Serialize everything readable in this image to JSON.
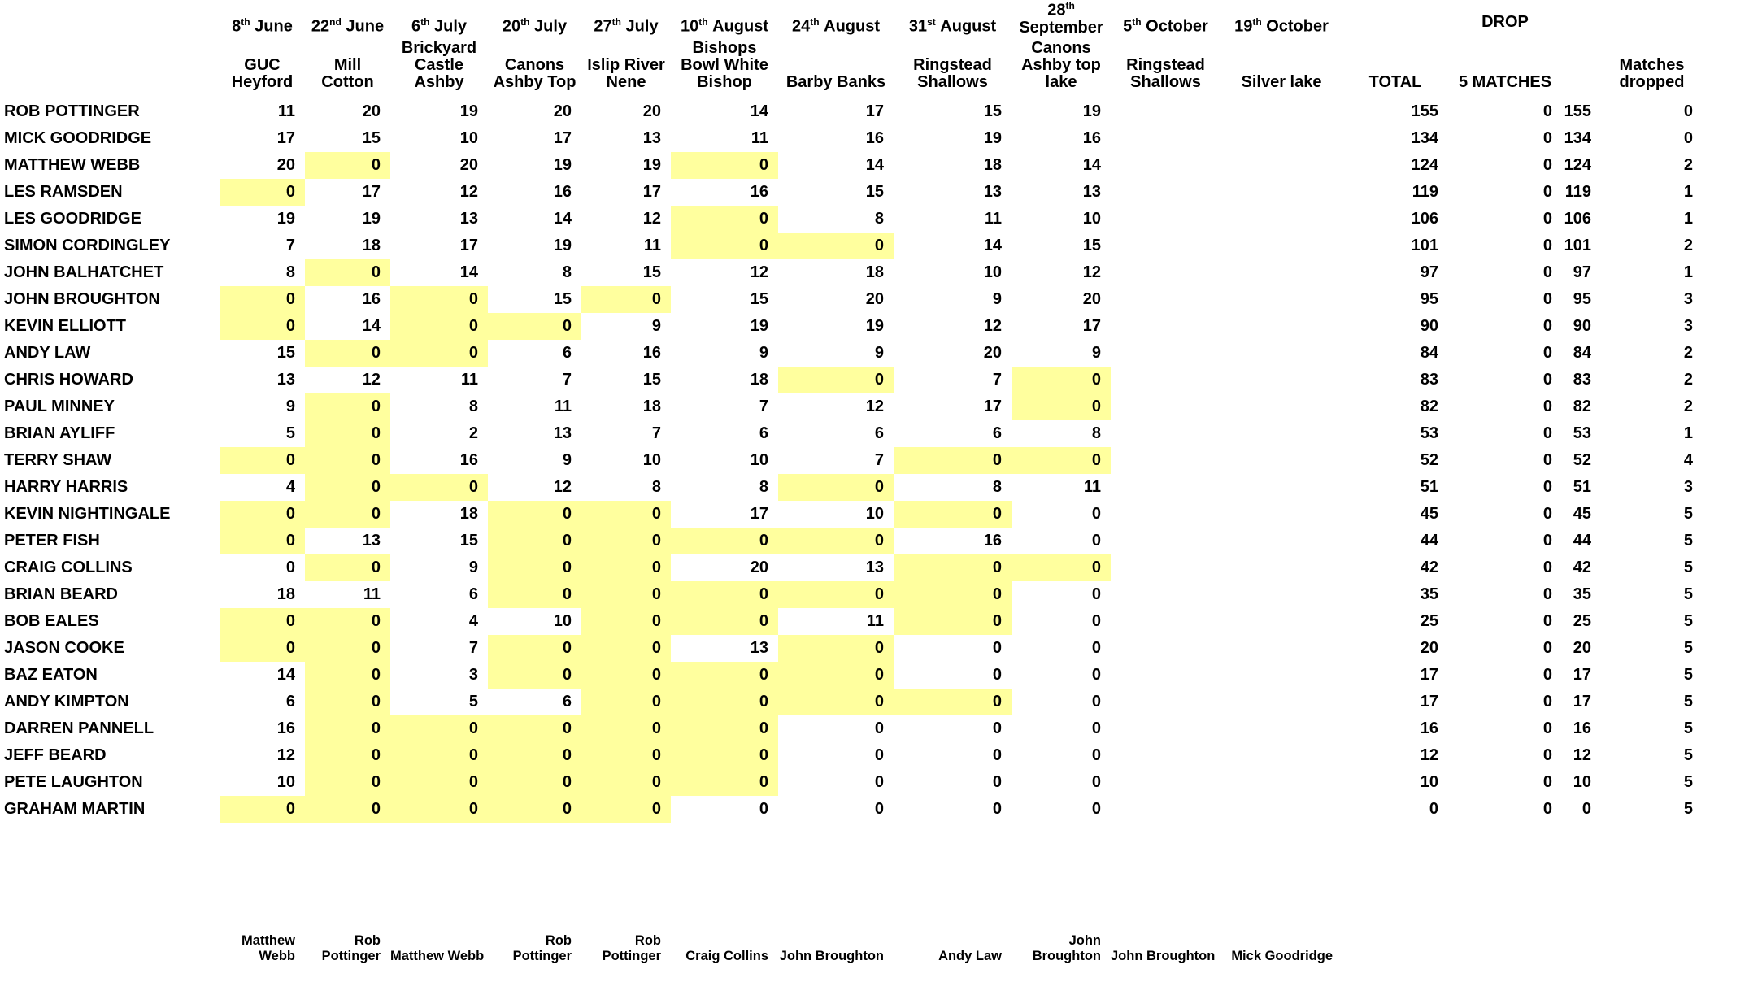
{
  "header": {
    "drop_label": "DROP",
    "total_label": "TOTAL",
    "five_matches_label": "5 MATCHES",
    "matches_dropped_lines": [
      "Matches",
      "dropped"
    ]
  },
  "highlight_color": "#ffff9e",
  "matches": [
    {
      "day": "8",
      "ord": "th",
      "month": "June",
      "month_newline": false,
      "venue_lines": [
        "GUC",
        "Heyford"
      ],
      "winner_lines": [
        "Matthew",
        "Webb"
      ]
    },
    {
      "day": "22",
      "ord": "nd",
      "month": "June",
      "month_newline": false,
      "venue_lines": [
        "Mill",
        "Cotton"
      ],
      "winner_lines": [
        "Rob",
        "Pottinger"
      ]
    },
    {
      "day": "6",
      "ord": "th",
      "month": "July",
      "month_newline": false,
      "venue_lines": [
        "Brickyard",
        "Castle",
        "Ashby"
      ],
      "winner_lines": [
        "Matthew Webb"
      ]
    },
    {
      "day": "20",
      "ord": "th",
      "month": "July",
      "month_newline": false,
      "venue_lines": [
        "Canons",
        "Ashby Top"
      ],
      "winner_lines": [
        "Rob",
        "Pottinger"
      ]
    },
    {
      "day": "27",
      "ord": "th",
      "month": "July",
      "month_newline": false,
      "venue_lines": [
        "Islip River",
        "Nene"
      ],
      "winner_lines": [
        "Rob",
        "Pottinger"
      ]
    },
    {
      "day": "10",
      "ord": "th",
      "month": "August",
      "month_newline": false,
      "venue_lines": [
        "Bishops",
        "Bowl White",
        "Bishop"
      ],
      "winner_lines": [
        "Craig Collins"
      ]
    },
    {
      "day": "24",
      "ord": "th",
      "month": "August",
      "month_newline": false,
      "venue_lines": [
        "Barby Banks"
      ],
      "winner_lines": [
        "John Broughton"
      ]
    },
    {
      "day": "31",
      "ord": "st",
      "month": "August",
      "month_newline": false,
      "venue_lines": [
        "Ringstead",
        "Shallows"
      ],
      "winner_lines": [
        "Andy Law"
      ]
    },
    {
      "day": "28",
      "ord": "th",
      "month": "September",
      "month_newline": true,
      "venue_lines": [
        "Canons",
        "Ashby top",
        "lake"
      ],
      "winner_lines": [
        "John",
        "Broughton"
      ]
    },
    {
      "day": "5",
      "ord": "th",
      "month": "October",
      "month_newline": false,
      "venue_lines": [
        "Ringstead",
        "Shallows"
      ],
      "winner_lines": [
        "John Broughton"
      ]
    },
    {
      "day": "19",
      "ord": "th",
      "month": "October",
      "month_newline": false,
      "venue_lines": [
        "Silver lake"
      ],
      "winner_lines": [
        "Mick Goodridge"
      ]
    }
  ],
  "anglers": [
    {
      "name": "ROB POTTINGER",
      "scores": [
        11,
        20,
        19,
        20,
        20,
        14,
        17,
        15,
        19,
        null,
        null
      ],
      "dropped": [],
      "total": 155,
      "five_matches": 0,
      "total_after_drop": 155,
      "matches_dropped": 0
    },
    {
      "name": "MICK GOODRIDGE",
      "scores": [
        17,
        15,
        10,
        17,
        13,
        11,
        16,
        19,
        16,
        null,
        null
      ],
      "dropped": [],
      "total": 134,
      "five_matches": 0,
      "total_after_drop": 134,
      "matches_dropped": 0
    },
    {
      "name": "MATTHEW WEBB",
      "scores": [
        20,
        0,
        20,
        19,
        19,
        0,
        14,
        18,
        14,
        null,
        null
      ],
      "dropped": [
        1,
        5
      ],
      "total": 124,
      "five_matches": 0,
      "total_after_drop": 124,
      "matches_dropped": 2
    },
    {
      "name": "LES RAMSDEN",
      "scores": [
        0,
        17,
        12,
        16,
        17,
        16,
        15,
        13,
        13,
        null,
        null
      ],
      "dropped": [
        0
      ],
      "total": 119,
      "five_matches": 0,
      "total_after_drop": 119,
      "matches_dropped": 1
    },
    {
      "name": "LES GOODRIDGE",
      "scores": [
        19,
        19,
        13,
        14,
        12,
        0,
        8,
        11,
        10,
        null,
        null
      ],
      "dropped": [
        5
      ],
      "total": 106,
      "five_matches": 0,
      "total_after_drop": 106,
      "matches_dropped": 1
    },
    {
      "name": "SIMON CORDINGLEY",
      "scores": [
        7,
        18,
        17,
        19,
        11,
        0,
        0,
        14,
        15,
        null,
        null
      ],
      "dropped": [
        5,
        6
      ],
      "total": 101,
      "five_matches": 0,
      "total_after_drop": 101,
      "matches_dropped": 2
    },
    {
      "name": "JOHN BALHATCHET",
      "scores": [
        8,
        0,
        14,
        8,
        15,
        12,
        18,
        10,
        12,
        null,
        null
      ],
      "dropped": [
        1
      ],
      "total": 97,
      "five_matches": 0,
      "total_after_drop": 97,
      "matches_dropped": 1
    },
    {
      "name": "JOHN BROUGHTON",
      "scores": [
        0,
        16,
        0,
        15,
        0,
        15,
        20,
        9,
        20,
        null,
        null
      ],
      "dropped": [
        0,
        2,
        4
      ],
      "total": 95,
      "five_matches": 0,
      "total_after_drop": 95,
      "matches_dropped": 3
    },
    {
      "name": "KEVIN ELLIOTT",
      "scores": [
        0,
        14,
        0,
        0,
        9,
        19,
        19,
        12,
        17,
        null,
        null
      ],
      "dropped": [
        0,
        2,
        3
      ],
      "total": 90,
      "five_matches": 0,
      "total_after_drop": 90,
      "matches_dropped": 3
    },
    {
      "name": "ANDY LAW",
      "scores": [
        15,
        0,
        0,
        6,
        16,
        9,
        9,
        20,
        9,
        null,
        null
      ],
      "dropped": [
        1,
        2
      ],
      "total": 84,
      "five_matches": 0,
      "total_after_drop": 84,
      "matches_dropped": 2
    },
    {
      "name": "CHRIS HOWARD",
      "scores": [
        13,
        12,
        11,
        7,
        15,
        18,
        0,
        7,
        0,
        null,
        null
      ],
      "dropped": [
        6,
        8
      ],
      "total": 83,
      "five_matches": 0,
      "total_after_drop": 83,
      "matches_dropped": 2
    },
    {
      "name": "PAUL MINNEY",
      "scores": [
        9,
        0,
        8,
        11,
        18,
        7,
        12,
        17,
        0,
        null,
        null
      ],
      "dropped": [
        1,
        8
      ],
      "total": 82,
      "five_matches": 0,
      "total_after_drop": 82,
      "matches_dropped": 2
    },
    {
      "name": "BRIAN AYLIFF",
      "scores": [
        5,
        0,
        2,
        13,
        7,
        6,
        6,
        6,
        8,
        null,
        null
      ],
      "dropped": [
        1
      ],
      "total": 53,
      "five_matches": 0,
      "total_after_drop": 53,
      "matches_dropped": 1
    },
    {
      "name": "TERRY SHAW",
      "scores": [
        0,
        0,
        16,
        9,
        10,
        10,
        7,
        0,
        0,
        null,
        null
      ],
      "dropped": [
        0,
        1,
        7,
        8
      ],
      "total": 52,
      "five_matches": 0,
      "total_after_drop": 52,
      "matches_dropped": 4
    },
    {
      "name": "HARRY HARRIS",
      "scores": [
        4,
        0,
        0,
        12,
        8,
        8,
        0,
        8,
        11,
        null,
        null
      ],
      "dropped": [
        1,
        2,
        6
      ],
      "total": 51,
      "five_matches": 0,
      "total_after_drop": 51,
      "matches_dropped": 3
    },
    {
      "name": "KEVIN NIGHTINGALE",
      "scores": [
        0,
        0,
        18,
        0,
        0,
        17,
        10,
        0,
        0,
        null,
        null
      ],
      "dropped": [
        0,
        1,
        3,
        4,
        7
      ],
      "total": 45,
      "five_matches": 0,
      "total_after_drop": 45,
      "matches_dropped": 5
    },
    {
      "name": "PETER FISH",
      "scores": [
        0,
        13,
        15,
        0,
        0,
        0,
        0,
        16,
        0,
        null,
        null
      ],
      "dropped": [
        0,
        3,
        4,
        5,
        6
      ],
      "total": 44,
      "five_matches": 0,
      "total_after_drop": 44,
      "matches_dropped": 5
    },
    {
      "name": "CRAIG COLLINS",
      "scores": [
        0,
        0,
        9,
        0,
        0,
        20,
        13,
        0,
        0,
        null,
        null
      ],
      "dropped": [
        1,
        3,
        4,
        7,
        8
      ],
      "total": 42,
      "five_matches": 0,
      "total_after_drop": 42,
      "matches_dropped": 5
    },
    {
      "name": "BRIAN BEARD",
      "scores": [
        18,
        11,
        6,
        0,
        0,
        0,
        0,
        0,
        0,
        null,
        null
      ],
      "dropped": [
        3,
        4,
        5,
        6,
        7
      ],
      "total": 35,
      "five_matches": 0,
      "total_after_drop": 35,
      "matches_dropped": 5
    },
    {
      "name": "BOB EALES",
      "scores": [
        0,
        0,
        4,
        10,
        0,
        0,
        11,
        0,
        0,
        null,
        null
      ],
      "dropped": [
        0,
        1,
        4,
        5,
        7
      ],
      "total": 25,
      "five_matches": 0,
      "total_after_drop": 25,
      "matches_dropped": 5
    },
    {
      "name": "JASON COOKE",
      "scores": [
        0,
        0,
        7,
        0,
        0,
        13,
        0,
        0,
        0,
        null,
        null
      ],
      "dropped": [
        0,
        1,
        3,
        4,
        6
      ],
      "total": 20,
      "five_matches": 0,
      "total_after_drop": 20,
      "matches_dropped": 5
    },
    {
      "name": "BAZ EATON",
      "scores": [
        14,
        0,
        3,
        0,
        0,
        0,
        0,
        0,
        0,
        null,
        null
      ],
      "dropped": [
        1,
        3,
        4,
        5,
        6
      ],
      "total": 17,
      "five_matches": 0,
      "total_after_drop": 17,
      "matches_dropped": 5
    },
    {
      "name": "ANDY KIMPTON",
      "scores": [
        6,
        0,
        5,
        6,
        0,
        0,
        0,
        0,
        0,
        null,
        null
      ],
      "dropped": [
        1,
        4,
        5,
        6,
        7
      ],
      "total": 17,
      "five_matches": 0,
      "total_after_drop": 17,
      "matches_dropped": 5
    },
    {
      "name": "DARREN PANNELL",
      "scores": [
        16,
        0,
        0,
        0,
        0,
        0,
        0,
        0,
        0,
        null,
        null
      ],
      "dropped": [
        1,
        2,
        3,
        4,
        5
      ],
      "total": 16,
      "five_matches": 0,
      "total_after_drop": 16,
      "matches_dropped": 5
    },
    {
      "name": "JEFF BEARD",
      "scores": [
        12,
        0,
        0,
        0,
        0,
        0,
        0,
        0,
        0,
        null,
        null
      ],
      "dropped": [
        1,
        2,
        3,
        4,
        5
      ],
      "total": 12,
      "five_matches": 0,
      "total_after_drop": 12,
      "matches_dropped": 5
    },
    {
      "name": "PETE LAUGHTON",
      "scores": [
        10,
        0,
        0,
        0,
        0,
        0,
        0,
        0,
        0,
        null,
        null
      ],
      "dropped": [
        1,
        2,
        3,
        4,
        5
      ],
      "total": 10,
      "five_matches": 0,
      "total_after_drop": 10,
      "matches_dropped": 5
    },
    {
      "name": "GRAHAM MARTIN",
      "scores": [
        0,
        0,
        0,
        0,
        0,
        0,
        0,
        0,
        0,
        null,
        null
      ],
      "dropped": [
        0,
        1,
        2,
        3,
        4
      ],
      "total": 0,
      "five_matches": 0,
      "total_after_drop": 0,
      "matches_dropped": 5
    }
  ]
}
